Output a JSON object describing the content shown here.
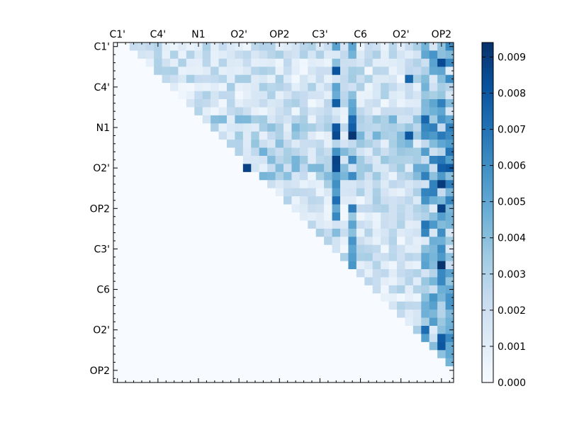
{
  "chart_data": {
    "type": "heatmap",
    "title": "",
    "xlabel": "",
    "ylabel": "",
    "n": 42,
    "upper_triangular": true,
    "x_tick_labels": [
      "C1'",
      "C4'",
      "N1",
      "O2'",
      "OP2",
      "C3'",
      "C6",
      "O2'",
      "OP2"
    ],
    "y_tick_labels": [
      "C1'",
      "C4'",
      "N1",
      "O2'",
      "OP2",
      "C3'",
      "C6",
      "O2'",
      "OP2"
    ],
    "major_tick_indices": [
      0,
      5,
      10,
      15,
      20,
      25,
      30,
      35,
      40
    ],
    "colormap": "Blues",
    "colormap_stops": [
      "#f7fbff",
      "#deebf7",
      "#c6dbef",
      "#9ecae1",
      "#6baed6",
      "#4292c6",
      "#2171b5",
      "#08519c",
      "#08306b"
    ],
    "colorbar_range": [
      0.0,
      0.0094
    ],
    "colorbar_ticks": [
      0.0,
      0.001,
      0.002,
      0.003,
      0.004,
      0.005,
      0.006,
      0.007,
      0.008,
      0.009
    ],
    "colorbar_tick_labels": [
      "0.000",
      "0.001",
      "0.002",
      "0.003",
      "0.004",
      "0.005",
      "0.006",
      "0.007",
      "0.008",
      "0.009"
    ],
    "value_note": "values estimated from color intensity; upper triangle cells in range 0.000-0.0094, lower triangle and diagonal near 0.000",
    "hot_cells": [
      {
        "row": 2,
        "col": 40,
        "value": 0.0085
      },
      {
        "row": 3,
        "col": 27,
        "value": 0.0082
      },
      {
        "row": 11,
        "col": 29,
        "value": 0.0092
      },
      {
        "row": 11,
        "col": 27,
        "value": 0.0085
      },
      {
        "row": 15,
        "col": 16,
        "value": 0.0088
      },
      {
        "row": 15,
        "col": 27,
        "value": 0.0086
      },
      {
        "row": 10,
        "col": 27,
        "value": 0.008
      },
      {
        "row": 7,
        "col": 27,
        "value": 0.0078
      },
      {
        "row": 11,
        "col": 36,
        "value": 0.008
      },
      {
        "row": 17,
        "col": 40,
        "value": 0.009
      },
      {
        "row": 20,
        "col": 40,
        "value": 0.0088
      },
      {
        "row": 27,
        "col": 40,
        "value": 0.0093
      },
      {
        "row": 36,
        "col": 40,
        "value": 0.0078
      },
      {
        "row": 37,
        "col": 40,
        "value": 0.008
      },
      {
        "row": 35,
        "col": 38,
        "value": 0.0072
      },
      {
        "row": 4,
        "col": 36,
        "value": 0.0075
      }
    ]
  }
}
